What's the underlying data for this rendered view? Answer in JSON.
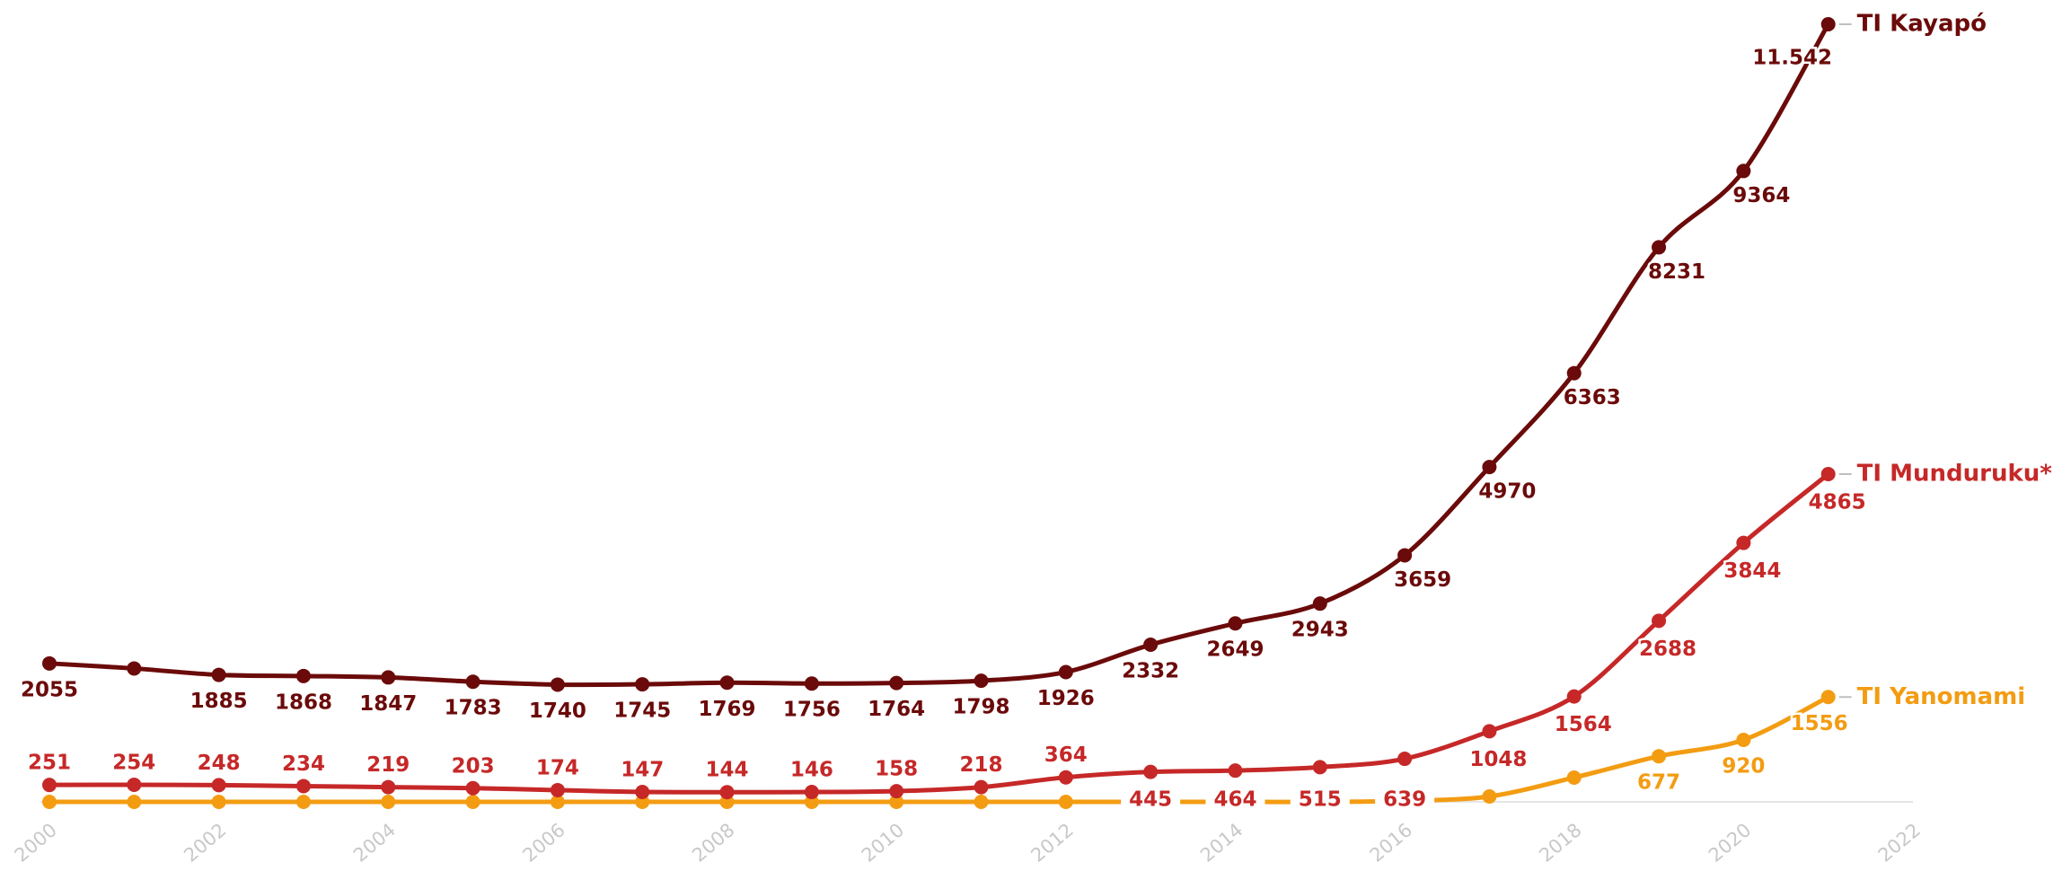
{
  "chart_data": {
    "type": "line",
    "title": "",
    "xlabel": "",
    "ylabel": "",
    "x": [
      2000,
      2001,
      2002,
      2003,
      2004,
      2005,
      2006,
      2007,
      2008,
      2009,
      2010,
      2011,
      2012,
      2013,
      2014,
      2015,
      2016,
      2017,
      2018,
      2019,
      2020,
      2021
    ],
    "xlim": [
      2000,
      2022
    ],
    "ylim": [
      0,
      11542
    ],
    "xticks": [
      "2000",
      "2002",
      "2004",
      "2006",
      "2008",
      "2010",
      "2012",
      "2014",
      "2016",
      "2018",
      "2020",
      "2022"
    ],
    "grid": false,
    "legend": "inline-end-labels",
    "series": [
      {
        "name": "TI Kayapó",
        "color": "#6b0a0a",
        "values": [
          2055,
          1980,
          1885,
          1868,
          1847,
          1783,
          1740,
          1745,
          1769,
          1756,
          1764,
          1798,
          1926,
          2332,
          2649,
          2943,
          3659,
          4970,
          6363,
          8231,
          9364,
          11542
        ],
        "labels": [
          "2055",
          "",
          "1885",
          "1868",
          "1847",
          "1783",
          "1740",
          "1745",
          "1769",
          "1756",
          "1764",
          "1798",
          "1926",
          "2332",
          "2649",
          "2943",
          "3659",
          "4970",
          "6363",
          "8231",
          "9364",
          "11.542"
        ]
      },
      {
        "name": "TI Munduruku*",
        "color": "#c62828",
        "values": [
          251,
          254,
          248,
          234,
          219,
          203,
          174,
          147,
          144,
          146,
          158,
          218,
          364,
          445,
          464,
          515,
          639,
          1048,
          1564,
          2688,
          3844,
          4865
        ],
        "labels": [
          "251",
          "254",
          "248",
          "234",
          "219",
          "203",
          "174",
          "147",
          "144",
          "146",
          "158",
          "218",
          "364",
          "445",
          "464",
          "515",
          "639",
          "1048",
          "1564",
          "2688",
          "3844",
          "4865"
        ]
      },
      {
        "name": "TI Yanomami",
        "color": "#f39c12",
        "values": [
          0,
          0,
          0,
          0,
          0,
          0,
          0,
          0,
          0,
          0,
          0,
          0,
          0,
          0,
          0,
          0,
          15,
          80,
          360,
          677,
          920,
          1556
        ],
        "labels": [
          "",
          "",
          "",
          "",
          "",
          "",
          "",
          "",
          "",
          "",
          "",
          "",
          "",
          "",
          "",
          "",
          "",
          "",
          "",
          "677",
          "920",
          "1556"
        ]
      }
    ]
  }
}
